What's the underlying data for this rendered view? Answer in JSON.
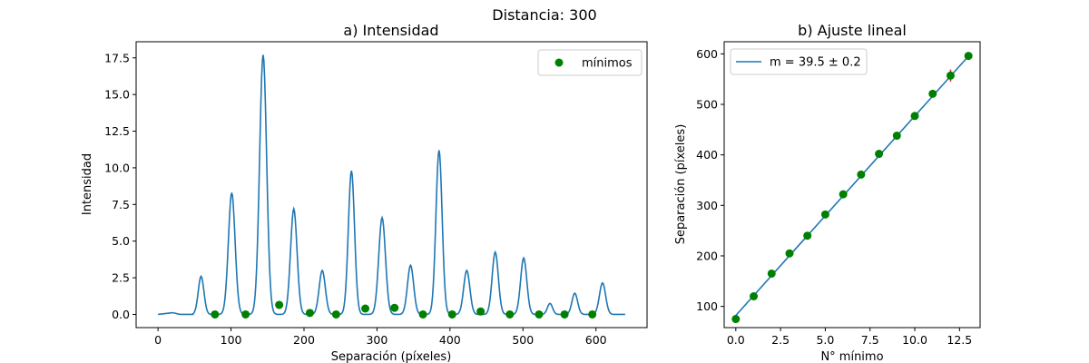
{
  "figure": {
    "suptitle": "Distancia: 300"
  },
  "chart_data": [
    {
      "type": "line",
      "title": "a) Intensidad",
      "xlabel": "Separación (píxeles)",
      "ylabel": "Intensidad",
      "xlim": [
        -30,
        670
      ],
      "ylim": [
        -0.9,
        18.6
      ],
      "xticks": [
        0,
        100,
        200,
        300,
        400,
        500,
        600
      ],
      "xtick_labels": [
        "0",
        "100",
        "200",
        "300",
        "400",
        "500",
        "600"
      ],
      "yticks": [
        0,
        2.5,
        5,
        7.5,
        10,
        12.5,
        15,
        17.5
      ],
      "ytick_labels": [
        "0.0",
        "2.5",
        "5.0",
        "7.5",
        "10.0",
        "12.5",
        "15.0",
        "17.5"
      ],
      "grid": false,
      "legend": {
        "position": "top-right",
        "entries": [
          "mínimos"
        ]
      },
      "line_color": "#1f77b4",
      "marker_color": "#008000",
      "baseline": [
        [
          0,
          0
        ],
        [
          20,
          0.12
        ],
        [
          30,
          0
        ],
        [
          48,
          0
        ]
      ],
      "peaks": [
        {
          "x": 59,
          "y": 2.6,
          "w": 5.5
        },
        {
          "x": 101,
          "y": 8.3,
          "w": 6.5
        },
        {
          "x": 144,
          "y": 17.7,
          "w": 6.8
        },
        {
          "x": 186,
          "y": 7.2,
          "w": 6.3
        },
        {
          "x": 225,
          "y": 3.0,
          "w": 6.0
        },
        {
          "x": 265,
          "y": 9.8,
          "w": 6.0
        },
        {
          "x": 307,
          "y": 6.6,
          "w": 6.5
        },
        {
          "x": 346,
          "y": 3.35,
          "w": 6.0
        },
        {
          "x": 385,
          "y": 11.2,
          "w": 6.0
        },
        {
          "x": 423,
          "y": 3.0,
          "w": 6.0
        },
        {
          "x": 462,
          "y": 4.25,
          "w": 6.0
        },
        {
          "x": 501,
          "y": 3.85,
          "w": 6.0
        },
        {
          "x": 537,
          "y": 0.75,
          "w": 5.0
        },
        {
          "x": 571,
          "y": 1.45,
          "w": 5.5
        },
        {
          "x": 609,
          "y": 2.15,
          "w": 6.0
        }
      ],
      "series": [
        {
          "name": "mínimos",
          "marker": "circle",
          "x": [
            78,
            120,
            166,
            208,
            244,
            284,
            324,
            363,
            403,
            442,
            482,
            522,
            557,
            595
          ],
          "y": [
            0.0,
            0.0,
            0.65,
            0.1,
            0.0,
            0.4,
            0.45,
            0.0,
            0.0,
            0.2,
            0.0,
            0.0,
            0.0,
            0.0
          ]
        }
      ]
    },
    {
      "type": "scatter",
      "title": "b) Ajuste lineal",
      "xlabel": "N° mínimo",
      "ylabel": "Separación (píxeles)",
      "xlim": [
        -0.65,
        13.65
      ],
      "ylim": [
        58,
        624
      ],
      "xticks": [
        0,
        2.5,
        5,
        7.5,
        10,
        12.5
      ],
      "xtick_labels": [
        "0.0",
        "2.5",
        "5.0",
        "7.5",
        "10.0",
        "12.5"
      ],
      "yticks": [
        100,
        200,
        300,
        400,
        500,
        600
      ],
      "ytick_labels": [
        "100",
        "200",
        "300",
        "400",
        "500",
        "600"
      ],
      "grid": false,
      "legend": {
        "position": "top-left",
        "entries": [
          "m = 39.5 ± 0.2"
        ]
      },
      "fit": {
        "slope": 39.5,
        "intercept": 82,
        "label": "m = 39.5 ± 0.2",
        "color": "#1f77b4"
      },
      "marker_color": "#008000",
      "errorbar_color": "#d62728",
      "series": [
        {
          "name": "mínimos",
          "marker": "circle",
          "x": [
            0,
            1,
            2,
            3,
            4,
            5,
            6,
            7,
            8,
            9,
            10,
            11,
            12,
            13
          ],
          "y": [
            75,
            120,
            165,
            205,
            240,
            282,
            322,
            361,
            402,
            438,
            477,
            521,
            557,
            596
          ],
          "yerr": [
            3,
            0,
            0,
            0,
            0,
            0,
            0,
            0,
            0,
            0,
            0,
            7,
            12,
            0
          ]
        }
      ]
    }
  ]
}
